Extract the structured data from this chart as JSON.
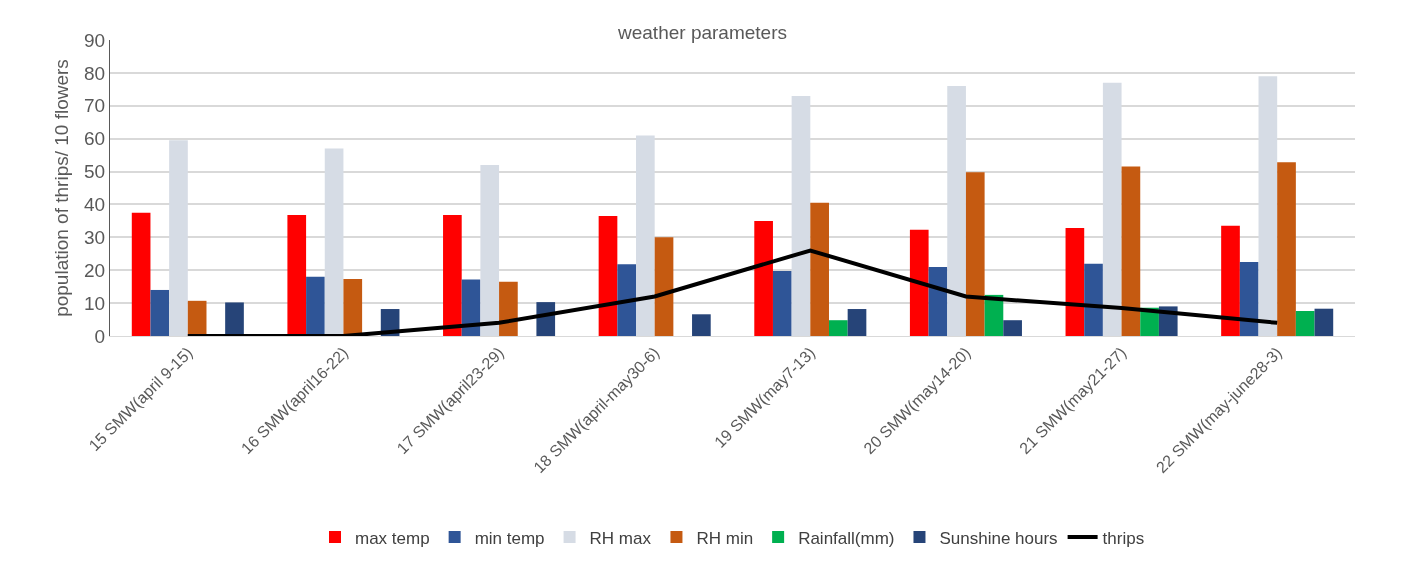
{
  "chart_data": {
    "type": "bar",
    "title": "weather parameters",
    "ylabel": "population of thrips/ 10 flowers",
    "categories": [
      "15 SMW(april 9-15)",
      "16 SMW(april16-22)",
      "17 SMW(april23-29)",
      "18 SMW(april-may30-6)",
      "19 SMW(may7-13)",
      "20 SMW(may14-20)",
      "21 SMW(may21-27)",
      "22 SMW(may-june28-3)"
    ],
    "series": [
      {
        "name": "max temp",
        "color": "#ff0000",
        "values": [
          37.5,
          36.8,
          36.8,
          36.5,
          35,
          32.3,
          32.8,
          33.5
        ]
      },
      {
        "name": "min temp",
        "color": "#2f5597",
        "values": [
          14,
          18,
          17.2,
          21.8,
          19.8,
          21,
          22,
          22.5
        ]
      },
      {
        "name": "RH max",
        "color": "#d6dce5",
        "values": [
          59.5,
          57,
          52,
          61,
          73,
          76,
          77,
          79
        ]
      },
      {
        "name": "RH min",
        "color": "#c55a11",
        "values": [
          10.7,
          17.3,
          16.5,
          30,
          40.5,
          49.8,
          51.5,
          52.8
        ]
      },
      {
        "name": "Rainfall(mm)",
        "color": "#00b050",
        "values": [
          0,
          0,
          0,
          0,
          4.8,
          12.5,
          8.6,
          7.6
        ]
      },
      {
        "name": "Sunshine hours",
        "color": "#264478",
        "values": [
          10.2,
          8.2,
          10.3,
          6.6,
          8.2,
          4.8,
          9,
          8.3
        ]
      },
      {
        "name": "thrips",
        "type": "line",
        "color": "#000000",
        "marker": "none",
        "line_style": "solid",
        "values": [
          0,
          0,
          4,
          12,
          26,
          12,
          8.5,
          4
        ]
      }
    ],
    "ylim": [
      0,
      90
    ],
    "yticks": [
      0,
      10,
      20,
      30,
      40,
      50,
      60,
      70,
      80,
      90
    ],
    "grid": "y",
    "legend": "bottom"
  }
}
